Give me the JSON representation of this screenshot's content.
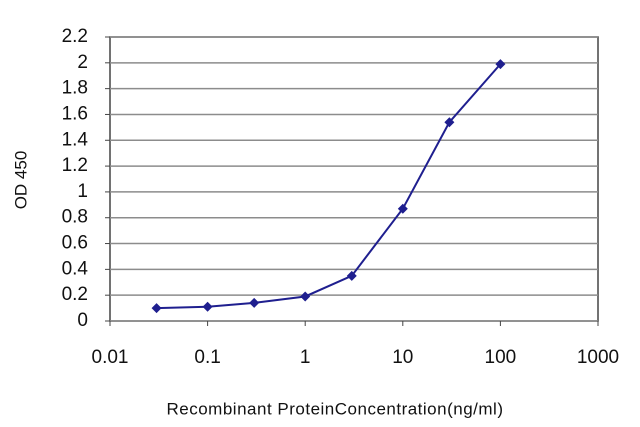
{
  "chart_data": {
    "type": "line",
    "x_label": "Recombinant ProteinConcentration(ng/ml)",
    "y_label": "OD 450",
    "x": [
      0.03,
      0.1,
      0.3,
      1,
      3,
      10,
      30,
      100
    ],
    "values": [
      0.1,
      0.11,
      0.14,
      0.19,
      0.35,
      0.87,
      1.54,
      1.99
    ],
    "color": "#1f1f8f",
    "xscale": "log",
    "xlim": [
      0.01,
      1000
    ],
    "xticks": [
      0.01,
      0.1,
      1,
      10,
      100,
      1000
    ],
    "ylim": [
      0,
      2.2
    ],
    "yticks": [
      0,
      0.2,
      0.4,
      0.6,
      0.8,
      1,
      1.2,
      1.4,
      1.6,
      1.8,
      2,
      2.2
    ],
    "grid": true
  }
}
